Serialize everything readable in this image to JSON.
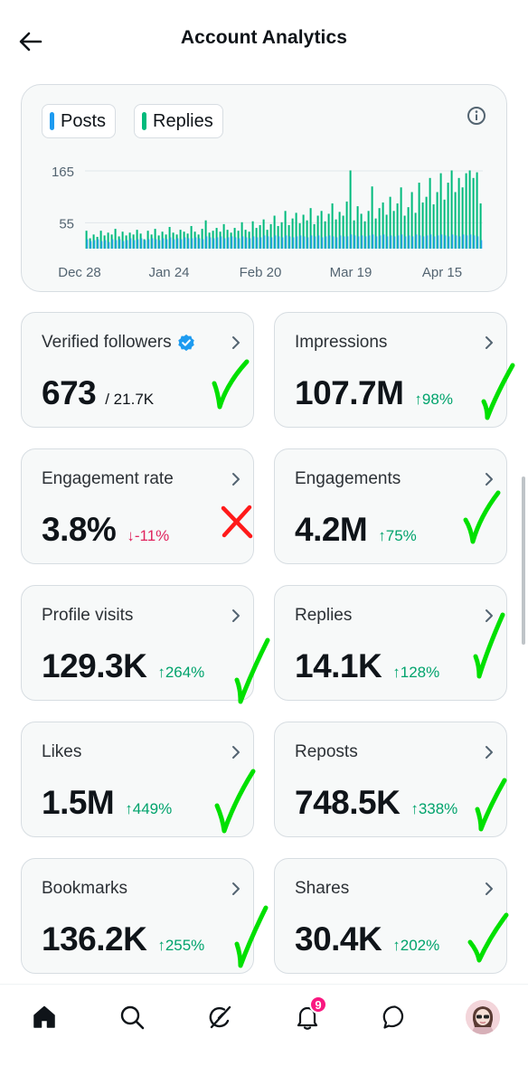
{
  "header": {
    "title": "Account Analytics"
  },
  "legend": {
    "posts": "Posts",
    "replies": "Replies"
  },
  "colors": {
    "posts": "#1d9bf0",
    "replies": "#00ba7c",
    "up": "#00a36c",
    "down": "#e0245e",
    "check": "#00e000",
    "cross": "#ff1a1a"
  },
  "chart_data": {
    "type": "bar",
    "y_ticks": [
      "165",
      "55"
    ],
    "x_ticks": [
      "Dec 28",
      "Jan 24",
      "Feb 20",
      "Mar 19",
      "Apr 15"
    ],
    "ylim": [
      0,
      200
    ],
    "series": [
      {
        "name": "Posts",
        "color": "#1d9bf0"
      },
      {
        "name": "Replies",
        "color": "#00ba7c"
      }
    ],
    "replies": [
      38,
      22,
      30,
      25,
      38,
      28,
      34,
      30,
      42,
      26,
      36,
      28,
      34,
      30,
      40,
      32,
      20,
      38,
      30,
      42,
      28,
      36,
      30,
      46,
      34,
      30,
      40,
      36,
      32,
      48,
      36,
      30,
      42,
      60,
      34,
      38,
      44,
      36,
      52,
      40,
      34,
      44,
      38,
      56,
      40,
      36,
      58,
      44,
      50,
      62,
      40,
      52,
      70,
      48,
      56,
      80,
      50,
      64,
      76,
      54,
      72,
      60,
      86,
      52,
      70,
      80,
      58,
      74,
      96,
      62,
      78,
      70,
      100,
      166,
      60,
      90,
      74,
      58,
      80,
      132,
      64,
      86,
      98,
      72,
      110,
      80,
      96,
      130,
      70,
      88,
      120,
      76,
      140,
      98,
      110,
      150,
      94,
      120,
      160,
      104,
      140,
      166,
      120,
      150,
      130,
      160,
      166,
      150,
      162,
      96
    ],
    "posts": [
      20,
      16,
      18,
      20,
      16,
      18,
      14,
      20,
      18,
      20,
      16,
      18,
      22,
      18,
      20,
      22,
      18,
      20,
      22,
      20,
      18,
      22,
      20,
      24,
      20,
      22,
      20,
      24,
      22,
      22,
      24,
      22,
      20,
      26,
      24,
      22,
      24,
      26,
      22,
      24,
      26,
      24,
      22,
      26,
      24,
      22,
      26,
      24,
      24,
      28,
      26,
      24,
      28,
      26,
      24,
      28,
      26,
      24,
      26,
      28,
      26,
      24,
      28,
      26,
      28,
      24,
      26,
      28,
      26,
      24,
      28,
      26,
      26,
      30,
      28,
      26,
      28,
      26,
      28,
      30,
      26,
      28,
      30,
      26,
      28,
      26,
      28,
      30,
      26,
      28,
      26,
      30,
      28,
      26,
      28,
      30,
      26,
      28,
      30,
      28,
      26,
      30,
      28,
      26,
      30,
      28,
      30,
      28,
      26,
      18
    ]
  },
  "stats": {
    "verified_followers": {
      "label": "Verified followers",
      "value": "673",
      "sub": "/ 21.7K"
    },
    "impressions": {
      "label": "Impressions",
      "value": "107.7M",
      "change": "98%"
    },
    "engagement_rate": {
      "label": "Engagement rate",
      "value": "3.8%",
      "change": "-11%"
    },
    "engagements": {
      "label": "Engagements",
      "value": "4.2M",
      "change": "75%"
    },
    "profile_visits": {
      "label": "Profile visits",
      "value": "129.3K",
      "change": "264%"
    },
    "replies": {
      "label": "Replies",
      "value": "14.1K",
      "change": "128%"
    },
    "likes": {
      "label": "Likes",
      "value": "1.5M",
      "change": "449%"
    },
    "reposts": {
      "label": "Reposts",
      "value": "748.5K",
      "change": "338%"
    },
    "bookmarks": {
      "label": "Bookmarks",
      "value": "136.2K",
      "change": "255%"
    },
    "shares": {
      "label": "Shares",
      "value": "30.4K",
      "change": "202%"
    }
  },
  "nav": {
    "notifications_count": "9"
  }
}
